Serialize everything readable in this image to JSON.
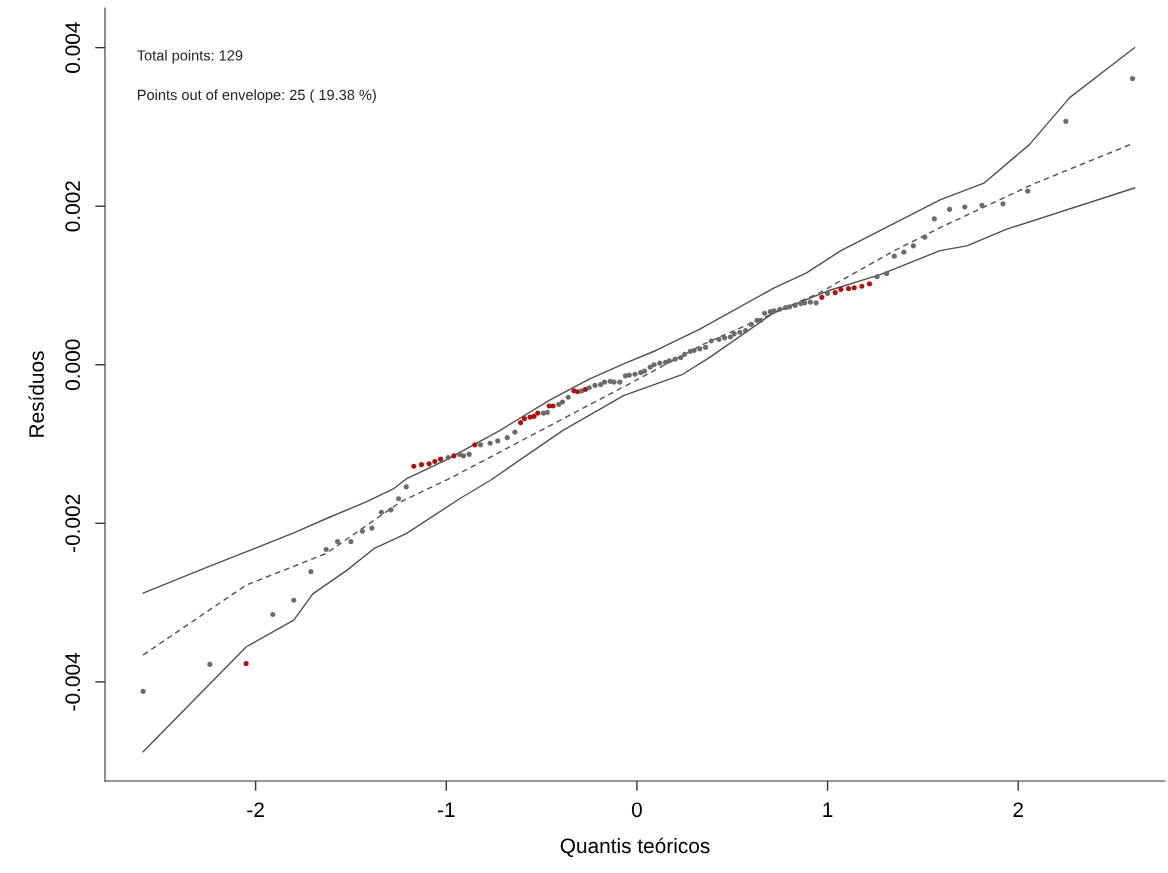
{
  "chart_data": {
    "type": "scatter",
    "xlabel": "Quantis teóricos",
    "ylabel": "Resíduos",
    "annotations": [
      "Total points: 129",
      "Points out of envelope: 25 ( 19.38 %)"
    ],
    "xlim": [
      -2.79,
      2.77
    ],
    "ylim": [
      -0.00525,
      0.0045
    ],
    "xticks": [
      -2,
      -1,
      0,
      1,
      2
    ],
    "yticks": [
      {
        "value": -0.004,
        "label": "-0.004"
      },
      {
        "value": -0.002,
        "label": "-0.002"
      },
      {
        "value": 0.0,
        "label": "0.000"
      },
      {
        "value": 0.002,
        "label": "0.002"
      },
      {
        "value": 0.004,
        "label": "0.004"
      }
    ],
    "grid": false,
    "legend": false,
    "series": [
      {
        "type": "line",
        "line_style": "solid",
        "color": "#505050",
        "x": [
          -2.59,
          -2.24,
          -2.05,
          -1.8,
          -1.61,
          -1.42,
          -1.28,
          -1.21,
          -1.0,
          -0.72,
          -0.46,
          -0.25,
          -0.07,
          0.1,
          0.33,
          0.72,
          0.89,
          1.07,
          1.59,
          1.82,
          2.06,
          2.27,
          2.61
        ],
        "values": [
          -0.00288,
          -0.00254,
          -0.00236,
          -0.00212,
          -0.00192,
          -0.00173,
          -0.00157,
          -0.00144,
          -0.0012,
          -0.00083,
          -0.00045,
          -0.00018,
          1e-05,
          0.00018,
          0.00045,
          0.00097,
          0.00116,
          0.00144,
          0.00208,
          0.00229,
          0.00278,
          0.00337,
          0.004
        ]
      },
      {
        "type": "line",
        "line_style": "dashed",
        "color": "#505050",
        "x": [
          -2.59,
          -2.05,
          -1.63,
          -1.24,
          -0.97,
          -0.04,
          0.35,
          0.96,
          1.35,
          1.59,
          2.08,
          2.59
        ],
        "values": [
          -0.00366,
          -0.00278,
          -0.00238,
          -0.00173,
          -0.00142,
          -0.00024,
          0.00026,
          0.00091,
          0.00144,
          0.00173,
          0.00228,
          0.00278
        ]
      },
      {
        "type": "line",
        "line_style": "solid",
        "color": "#505050",
        "x": [
          -2.59,
          -2.05,
          -1.8,
          -1.7,
          -1.52,
          -1.38,
          -1.21,
          -0.93,
          -0.77,
          -0.39,
          -0.07,
          0.24,
          0.38,
          0.72,
          1.0,
          1.28,
          1.59,
          1.73,
          1.94,
          2.61
        ],
        "values": [
          -0.00488,
          -0.00356,
          -0.00322,
          -0.00289,
          -0.00259,
          -0.00232,
          -0.00213,
          -0.00169,
          -0.00146,
          -0.00083,
          -0.00039,
          -0.00012,
          9e-05,
          0.00066,
          0.00093,
          0.00114,
          0.00144,
          0.0015,
          0.00171,
          0.00223
        ]
      },
      {
        "marker": "circle",
        "x": [
          -2.59,
          -2.24,
          -2.05,
          -1.91,
          -1.8,
          -1.71,
          -1.63,
          -1.57,
          -1.5,
          -1.44,
          -1.39,
          -1.34,
          -1.29,
          -1.25,
          -1.21,
          -1.17,
          -1.13,
          -1.09,
          -1.06,
          -1.03,
          -0.99,
          -0.96,
          -0.93,
          -0.91,
          -0.88,
          -0.85,
          -0.82,
          -0.77,
          -0.73,
          -0.68,
          -0.64,
          -0.61,
          -0.59,
          -0.56,
          -0.54,
          -0.52,
          -0.49,
          -0.47,
          -0.46,
          -0.44,
          -0.41,
          -0.39,
          -0.36,
          -0.33,
          -0.31,
          -0.29,
          -0.27,
          -0.25,
          -0.22,
          -0.19,
          -0.17,
          -0.14,
          -0.12,
          -0.09,
          -0.06,
          -0.04,
          -0.01,
          0.02,
          0.04,
          0.07,
          0.09,
          0.12,
          0.15,
          0.17,
          0.2,
          0.23,
          0.25,
          0.28,
          0.3,
          0.33,
          0.36,
          0.39,
          0.43,
          0.46,
          0.49,
          0.51,
          0.54,
          0.57,
          0.6,
          0.63,
          0.65,
          0.67,
          0.7,
          0.72,
          0.75,
          0.78,
          0.8,
          0.83,
          0.86,
          0.88,
          0.91,
          0.94,
          0.97,
          1.0,
          1.04,
          1.07,
          1.11,
          1.14,
          1.18,
          1.22,
          1.26,
          1.31,
          1.35,
          1.4,
          1.45,
          1.51,
          1.56,
          1.64,
          1.72,
          1.81,
          1.92,
          2.05,
          2.25,
          2.6
        ],
        "values": [
          -0.00412,
          -0.00378,
          -0.00377,
          -0.00315,
          -0.00297,
          -0.00261,
          -0.00233,
          -0.00223,
          -0.00223,
          -0.0021,
          -0.00206,
          -0.00186,
          -0.00183,
          -0.00169,
          -0.00154,
          -0.00128,
          -0.00126,
          -0.00125,
          -0.00122,
          -0.00119,
          -0.00117,
          -0.00115,
          -0.00113,
          -0.00115,
          -0.00113,
          -0.00101,
          -0.00101,
          -0.00099,
          -0.00096,
          -0.00092,
          -0.00085,
          -0.00073,
          -0.00068,
          -0.00066,
          -0.00065,
          -0.00061,
          -0.00061,
          -0.0006,
          -0.00052,
          -0.00052,
          -0.0005,
          -0.00047,
          -0.00041,
          -0.00033,
          -0.00034,
          -0.00033,
          -0.00031,
          -0.00029,
          -0.00026,
          -0.00025,
          -0.00022,
          -0.00021,
          -0.00022,
          -0.00022,
          -0.00014,
          -0.00013,
          -0.00012,
          -0.0001,
          -8e-05,
          -3e-05,
          0.0,
          2e-05,
          3e-05,
          5e-05,
          7e-05,
          9e-05,
          0.00013,
          0.00017,
          0.00018,
          0.0002,
          0.00022,
          0.0003,
          0.00032,
          0.00034,
          0.00035,
          0.00039,
          0.00041,
          0.00043,
          0.00051,
          0.00056,
          0.00056,
          0.00065,
          0.00067,
          0.00068,
          0.0007,
          0.00072,
          0.00073,
          0.00075,
          0.00077,
          0.00078,
          0.00079,
          0.00078,
          0.00085,
          0.0009,
          0.00091,
          0.00095,
          0.00096,
          0.00097,
          0.00099,
          0.00102,
          0.00111,
          0.00115,
          0.00137,
          0.00142,
          0.0015,
          0.00161,
          0.00184,
          0.00196,
          0.00199,
          0.00201,
          0.00203,
          0.00219,
          0.00307,
          0.00361
        ],
        "colors": [
          "#6b6b6b",
          "#6b6b6b",
          "#b01010",
          "#6b6b6b",
          "#6b6b6b",
          "#6b6b6b",
          "#6b6b6b",
          "#6b6b6b",
          "#6b6b6b",
          "#6b6b6b",
          "#6b6b6b",
          "#6b6b6b",
          "#6b6b6b",
          "#6b6b6b",
          "#6b6b6b",
          "#b01010",
          "#b01010",
          "#b01010",
          "#b01010",
          "#b01010",
          "#6b6b6b",
          "#b01010",
          "#6b6b6b",
          "#6b6b6b",
          "#6b6b6b",
          "#b01010",
          "#6b6b6b",
          "#6b6b6b",
          "#6b6b6b",
          "#6b6b6b",
          "#6b6b6b",
          "#b01010",
          "#b01010",
          "#b01010",
          "#b01010",
          "#b01010",
          "#6b6b6b",
          "#6b6b6b",
          "#b01010",
          "#b01010",
          "#6b6b6b",
          "#6b6b6b",
          "#6b6b6b",
          "#b01010",
          "#b01010",
          "#6b6b6b",
          "#b01010",
          "#6b6b6b",
          "#6b6b6b",
          "#6b6b6b",
          "#6b6b6b",
          "#6b6b6b",
          "#6b6b6b",
          "#6b6b6b",
          "#6b6b6b",
          "#6b6b6b",
          "#6b6b6b",
          "#6b6b6b",
          "#6b6b6b",
          "#6b6b6b",
          "#6b6b6b",
          "#6b6b6b",
          "#6b6b6b",
          "#6b6b6b",
          "#6b6b6b",
          "#6b6b6b",
          "#6b6b6b",
          "#6b6b6b",
          "#6b6b6b",
          "#6b6b6b",
          "#6b6b6b",
          "#6b6b6b",
          "#6b6b6b",
          "#6b6b6b",
          "#6b6b6b",
          "#6b6b6b",
          "#6b6b6b",
          "#6b6b6b",
          "#6b6b6b",
          "#6b6b6b",
          "#6b6b6b",
          "#6b6b6b",
          "#6b6b6b",
          "#6b6b6b",
          "#6b6b6b",
          "#6b6b6b",
          "#6b6b6b",
          "#6b6b6b",
          "#6b6b6b",
          "#6b6b6b",
          "#6b6b6b",
          "#6b6b6b",
          "#b01010",
          "#6b6b6b",
          "#b01010",
          "#b01010",
          "#b01010",
          "#b01010",
          "#b01010",
          "#b01010",
          "#6b6b6b",
          "#6b6b6b",
          "#6b6b6b",
          "#6b6b6b",
          "#6b6b6b",
          "#6b6b6b",
          "#6b6b6b",
          "#6b6b6b",
          "#6b6b6b",
          "#6b6b6b",
          "#6b6b6b",
          "#6b6b6b",
          "#6b6b6b",
          "#6b6b6b"
        ]
      }
    ]
  }
}
